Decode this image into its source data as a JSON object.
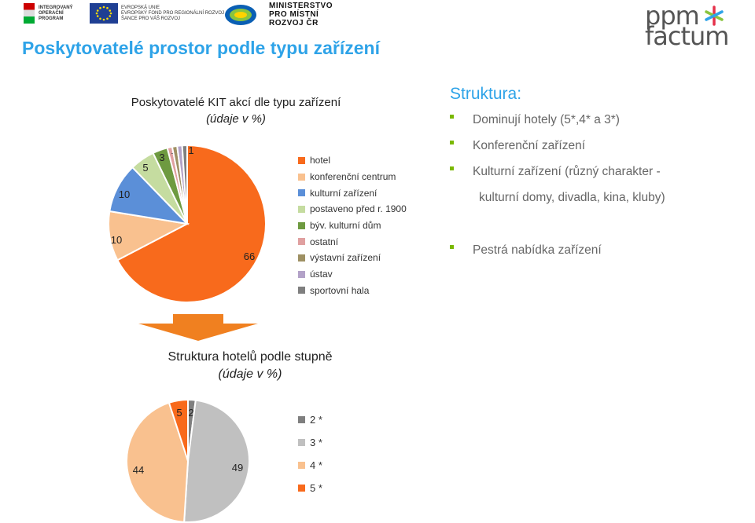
{
  "header": {
    "logo1_lines": [
      "INTEGROVANÝ",
      "OPERAČNÍ",
      "PROGRAM"
    ],
    "logo2_lines": [
      "EVROPSKÁ UNIE",
      "EVROPSKÝ FOND PRO REGIONÁLNÍ ROZVOJ",
      "ŠANCE PRO VÁŠ ROZVOJ"
    ],
    "logo3_lines": [
      "MINISTERSTVO",
      "PRO MÍSTNÍ",
      "ROZVOJ ČR"
    ],
    "brand_lines": [
      "ppm",
      "factum"
    ],
    "page_title": "Poskytovatelé prostor podle typu zařízení"
  },
  "structure": {
    "title": "Struktura:",
    "bullets": [
      "Dominují hotely (5*,4* a 3*)",
      "Konferenční zařízení",
      "Kulturní zařízení (různý charakter -",
      "Pestrá nabídka zařízení"
    ],
    "bullet_continuation": "kulturní domy, divadla, kina, kluby)"
  },
  "chart_data": [
    {
      "type": "pie",
      "title": "Poskytovatelé KIT akcí dle typu zařízení",
      "subtitle": "(údaje v %)",
      "categories": [
        "hotel",
        "konferenční centrum",
        "kulturní zařízení",
        "postaveno před r. 1900",
        "býv. kulturní dům",
        "ostatní",
        "výstavní zařízení",
        "ústav",
        "sportovní hala"
      ],
      "values": [
        66,
        10,
        10,
        5,
        3,
        1,
        1,
        1,
        1
      ],
      "data_labels": [
        "66",
        "10",
        "10",
        "5",
        "3",
        "1",
        "1",
        "1",
        "1"
      ],
      "colors": [
        "#f86a1c",
        "#f9c18f",
        "#5b8fd8",
        "#c5dca0",
        "#6e9a40",
        "#e0a0a0",
        "#9e9063",
        "#b3a2c8",
        "#7f7f7f"
      ],
      "legend": "right"
    },
    {
      "type": "pie",
      "title": "Struktura hotelů podle stupně",
      "subtitle": "(údaje v %)",
      "categories": [
        "2 *",
        "3 *",
        "4 *",
        "5 *"
      ],
      "values": [
        2,
        49,
        44,
        5
      ],
      "data_labels": [
        "2",
        "49",
        "44",
        "5"
      ],
      "colors": [
        "#7f7f7f",
        "#c0c0c0",
        "#f9c18f",
        "#f86a1c"
      ],
      "legend": "right"
    }
  ]
}
